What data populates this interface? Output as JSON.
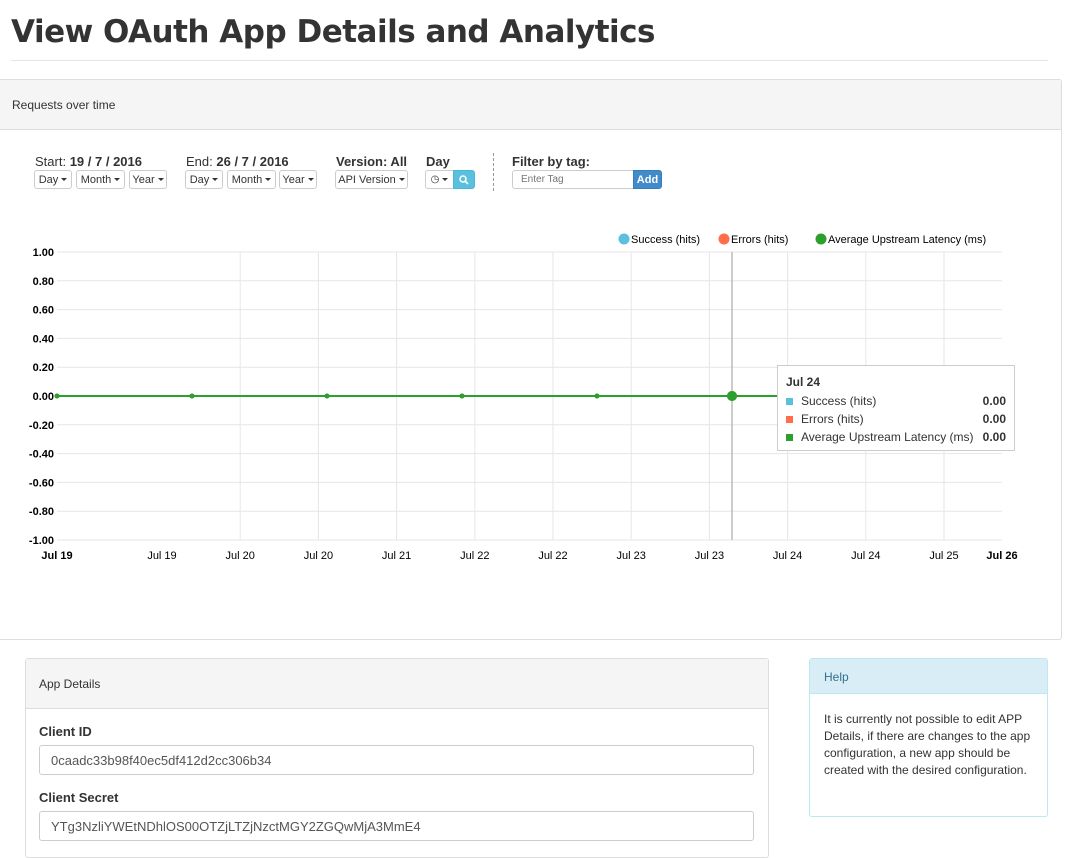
{
  "page": {
    "title": "View OAuth App Details and Analytics"
  },
  "requests_panel": {
    "title": "Requests over time",
    "start_label": "Start:",
    "start_value": "19 / 7 / 2016",
    "end_label": "End:",
    "end_value": "26 / 7 / 2016",
    "version_label": "Version: All",
    "granularity_label": "Day",
    "filter_label": "Filter by tag:",
    "tag_placeholder": "Enter Tag",
    "add_label": "Add",
    "day_label": "Day",
    "month_label": "Month",
    "year_label": "Year",
    "api_version_label": "API Version"
  },
  "chart_data": {
    "type": "line",
    "x": [
      "Jul 19",
      "Jul 20",
      "Jul 21",
      "Jul 22",
      "Jul 23",
      "Jul 24",
      "Jul 25",
      "Jul 26"
    ],
    "x_tick_labels": [
      "Jul 19",
      "Jul 19",
      "Jul 20",
      "Jul 20",
      "Jul 21",
      "Jul 22",
      "Jul 22",
      "Jul 23",
      "Jul 23",
      "Jul 24",
      "Jul 24",
      "Jul 25",
      "Jul 26"
    ],
    "y_tick_labels": [
      "1.00",
      "0.80",
      "0.60",
      "0.40",
      "0.20",
      "0.00",
      "-0.20",
      "-0.40",
      "-0.60",
      "-0.80",
      "-1.00"
    ],
    "ylim": [
      -1,
      1
    ],
    "grid": true,
    "legend_position": "top-right",
    "series": [
      {
        "name": "Success (hits)",
        "color": "#5bc0de",
        "values": [
          0,
          0,
          0,
          0,
          0,
          0,
          0,
          0
        ]
      },
      {
        "name": "Errors (hits)",
        "color": "#ff6d4a",
        "values": [
          0,
          0,
          0,
          0,
          0,
          0,
          0,
          0
        ]
      },
      {
        "name": "Average Upstream Latency (ms)",
        "color": "#2ca02c",
        "values": [
          0,
          0,
          0,
          0,
          0,
          0,
          0,
          0
        ]
      }
    ],
    "tooltip": {
      "title": "Jul 24",
      "rows": [
        {
          "name": "Success (hits)",
          "value": "0.00",
          "color": "#5bc0de"
        },
        {
          "name": "Errors (hits)",
          "value": "0.00",
          "color": "#ff6d4a"
        },
        {
          "name": "Average Upstream Latency (ms)",
          "value": "0.00",
          "color": "#2ca02c"
        }
      ]
    }
  },
  "app_details": {
    "title": "App Details",
    "client_id_label": "Client ID",
    "client_id": "0caadc33b98f40ec5df412d2cc306b34",
    "client_secret_label": "Client Secret",
    "client_secret": "YTg3NzliYWEtNDhlOS00OTZjLTZjNzctMGY2ZGQwMjA3MmE4"
  },
  "help": {
    "title": "Help",
    "text": "It is currently not possible to edit APP Details, if there are changes to the app configuration, a new app should be created with the desired configuration."
  }
}
